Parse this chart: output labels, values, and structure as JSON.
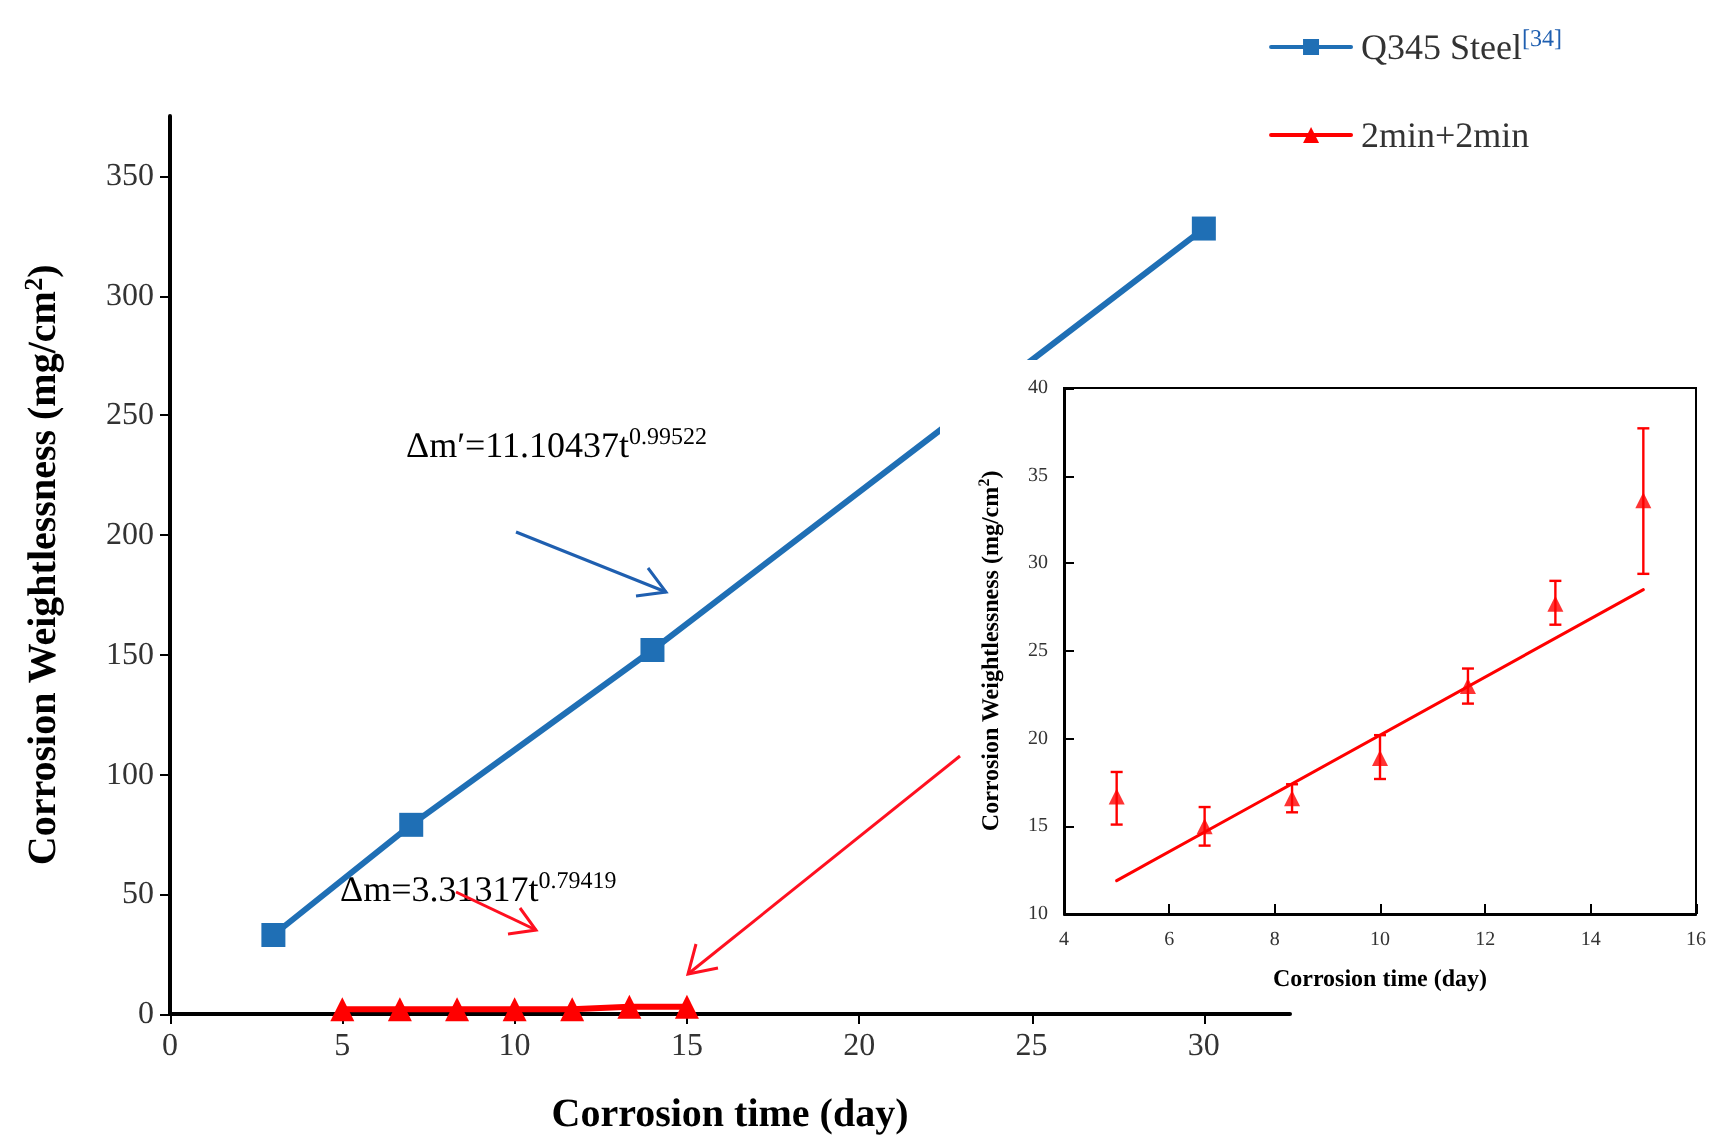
{
  "chart_data": [
    {
      "type": "line",
      "xlabel": "Corrosion time (day)",
      "ylabel": "Corrosion Weightlessness (mg/cm$^{2}$)",
      "xlim": [
        0,
        32.5
      ],
      "xticks": [
        0,
        5,
        10,
        15,
        20,
        25,
        30
      ],
      "ylim": [
        0,
        375
      ],
      "yticks": [
        0,
        50,
        100,
        150,
        200,
        250,
        300,
        350
      ],
      "legend": "top right",
      "grid": false,
      "annotations": [
        "Δm′=11.10437t$^{0.99522}$",
        "Δm=3.31317t$^{0.79419}$"
      ],
      "series": [
        {
          "name": "Q345 Steel$^{[34]}$",
          "color": "#1f6fb5",
          "marker": "square",
          "x": [
            3,
            7,
            14,
            30
          ],
          "values": [
            33,
            79,
            152,
            328
          ]
        },
        {
          "name": "2min+2min",
          "color": "#ff0000",
          "marker": "triangle",
          "x": [
            5,
            6.67,
            8.33,
            10,
            11.67,
            13.33,
            15
          ],
          "values": [
            2,
            2,
            2,
            2,
            2,
            3,
            3
          ]
        }
      ]
    },
    {
      "type": "scatter",
      "xlabel": "Corrosion time (day)",
      "ylabel": "Corrosion Weightlessness (mg/cm$^{2}$)",
      "xlim": [
        4,
        16
      ],
      "xticks": [
        4,
        6,
        8,
        10,
        12,
        14,
        16
      ],
      "ylim": [
        10,
        40
      ],
      "yticks": [
        10,
        15,
        20,
        25,
        30,
        35,
        40
      ],
      "legend": false,
      "grid": false,
      "series": [
        {
          "color": "#ff0000",
          "marker": "triangle",
          "x": [
            5,
            6.67,
            8.33,
            10,
            11.67,
            13.33,
            15
          ],
          "values": [
            16.7,
            15.0,
            16.6,
            18.9,
            23.0,
            27.7,
            33.6
          ],
          "errors": [
            [
              15.1,
              18.1
            ],
            [
              13.9,
              16.1
            ],
            [
              15.8,
              17.4
            ],
            [
              17.7,
              20.2
            ],
            [
              22.0,
              24.0
            ],
            [
              26.5,
              29.0
            ],
            [
              29.4,
              37.7
            ]
          ]
        },
        {
          "type": "line",
          "color": "#ff0000",
          "marker": "none",
          "x": [
            5,
            15
          ],
          "values": [
            11.9,
            28.5
          ]
        }
      ]
    }
  ]
}
